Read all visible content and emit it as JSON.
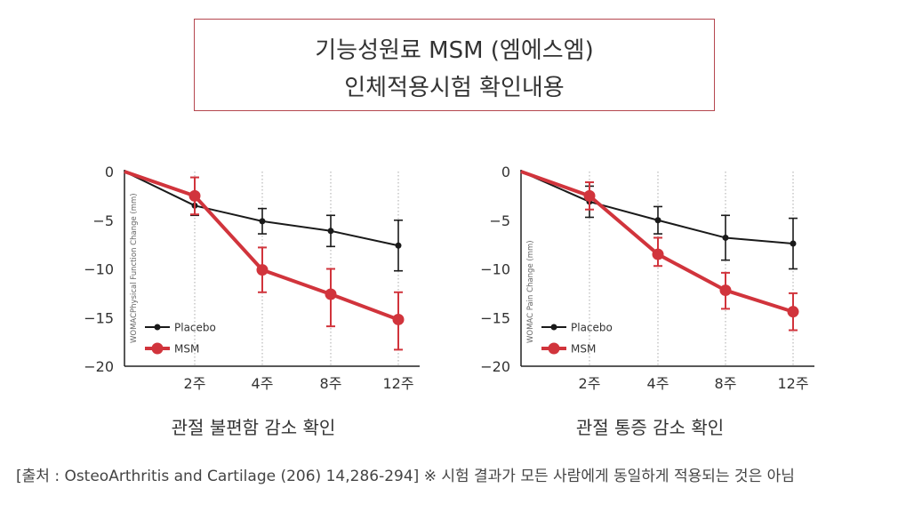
{
  "title": {
    "line1": "기능성원료 MSM (엠에스엠)",
    "line2": "인체적용시험 확인내용"
  },
  "colors": {
    "placebo": "#1a1a1a",
    "msm": "#d1343c",
    "accent": "#b5474f"
  },
  "chart_data": [
    {
      "type": "line",
      "ylabel": "WOMACPhysical Function Change (mm)",
      "caption": "관절 불편함 감소 확인",
      "categories": [
        "",
        "2주",
        "4주",
        "8주",
        "12주"
      ],
      "yticks": [
        0,
        -5,
        -10,
        -15,
        -20
      ],
      "ylim": [
        -20,
        0
      ],
      "legend": {
        "placement": "bottom-left"
      },
      "series": [
        {
          "name": "Placebo",
          "values": [
            0,
            -3.5,
            -5.1,
            -6.1,
            -7.6
          ],
          "err_hi": [
            null,
            1.0,
            1.3,
            1.6,
            2.6
          ],
          "err_lo": [
            null,
            1.0,
            1.3,
            1.6,
            2.6
          ]
        },
        {
          "name": "MSM",
          "values": [
            0,
            -2.5,
            -10.1,
            -12.6,
            -15.2
          ],
          "err_hi": [
            null,
            1.9,
            2.3,
            2.6,
            2.8
          ],
          "err_lo": [
            null,
            1.9,
            2.3,
            3.3,
            3.1
          ]
        }
      ]
    },
    {
      "type": "line",
      "ylabel": "WOMAC Pain Change (mm)",
      "caption": "관절 통증 감소 확인",
      "categories": [
        "",
        "2주",
        "4주",
        "8주",
        "12주"
      ],
      "yticks": [
        0,
        -5,
        -10,
        -15,
        -20
      ],
      "ylim": [
        -20,
        0
      ],
      "legend": {
        "placement": "bottom-left"
      },
      "series": [
        {
          "name": "Placebo",
          "values": [
            0,
            -3.1,
            -5.0,
            -6.8,
            -7.4
          ],
          "err_hi": [
            null,
            1.6,
            1.4,
            2.3,
            2.6
          ],
          "err_lo": [
            null,
            1.6,
            1.4,
            2.3,
            2.6
          ]
        },
        {
          "name": "MSM",
          "values": [
            0,
            -2.5,
            -8.5,
            -12.2,
            -14.4
          ],
          "err_hi": [
            null,
            1.4,
            1.7,
            1.8,
            1.9
          ],
          "err_lo": [
            null,
            1.4,
            1.2,
            1.9,
            1.9
          ]
        }
      ]
    }
  ],
  "source": "[출처 : OsteoArthritis and Cartilage (206) 14,286-294] ※ 시험 결과가 모든 사람에게 동일하게 적용되는 것은 아님"
}
